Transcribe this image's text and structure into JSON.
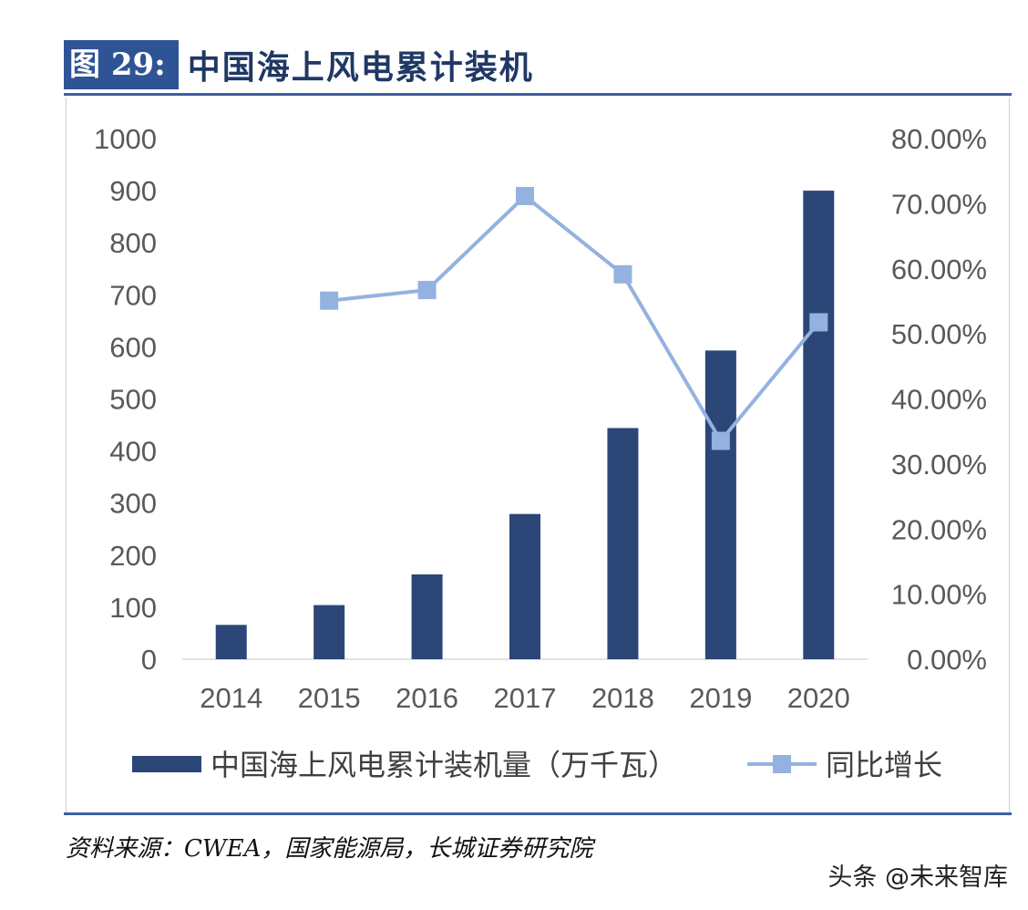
{
  "figure": {
    "label": "图 29:",
    "title": "中国海上风电累计装机"
  },
  "source": "资料来源：CWEA，国家能源局，长城证券研究院",
  "watermark": "头条 @未来智库",
  "colors": {
    "bar": "#2b4677",
    "line": "#94b2e0",
    "title": "#1f3864",
    "label_bg": "#2f5496",
    "rule": "#3f5fa0"
  },
  "chart_data": {
    "type": "bar",
    "categories": [
      "2014",
      "2015",
      "2016",
      "2017",
      "2018",
      "2019",
      "2020"
    ],
    "series": [
      {
        "name": "中国海上风电累计装机量（万千瓦）",
        "type": "bar",
        "axis": "left",
        "values": [
          66,
          104,
          163,
          279,
          444,
          593,
          900
        ]
      },
      {
        "name": "同比增长",
        "type": "line",
        "axis": "right",
        "values": [
          null,
          0.551,
          0.5673,
          0.7117,
          0.5915,
          0.3356,
          0.5177
        ]
      }
    ],
    "y_left": {
      "min": 0,
      "max": 1000,
      "step": 100,
      "ticks": [
        "0",
        "100",
        "200",
        "300",
        "400",
        "500",
        "600",
        "700",
        "800",
        "900",
        "1000"
      ]
    },
    "y_right": {
      "min": 0,
      "max": 0.8,
      "step": 0.1,
      "ticks": [
        "0.00%",
        "10.00%",
        "20.00%",
        "30.00%",
        "40.00%",
        "50.00%",
        "60.00%",
        "70.00%",
        "80.00%"
      ]
    },
    "grid": false,
    "legend_position": "bottom"
  }
}
